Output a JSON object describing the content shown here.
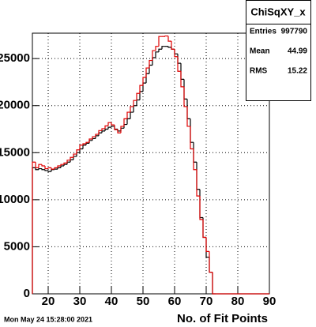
{
  "chart_data": {
    "type": "histogram",
    "stats": {
      "title": "ChiSqXY_x",
      "rows": [
        [
          "Entries",
          "997790"
        ],
        [
          "Mean",
          "44.99"
        ],
        [
          "RMS",
          "15.22"
        ]
      ]
    },
    "x_label": "No. of Fit Points",
    "timestamp": "Mon May 24 15:28:00 2021",
    "bins": [
      15,
      16,
      17,
      18,
      19,
      20,
      21,
      22,
      23,
      24,
      25,
      26,
      27,
      28,
      29,
      30,
      31,
      32,
      33,
      34,
      35,
      36,
      37,
      38,
      39,
      40,
      41,
      42,
      43,
      44,
      45,
      46,
      47,
      48,
      49,
      50,
      51,
      52,
      53,
      54,
      55,
      56,
      57,
      58,
      59,
      60,
      61,
      62,
      63,
      64,
      65,
      66,
      67,
      68,
      69,
      70,
      71,
      72,
      73,
      74,
      75,
      76,
      77,
      78,
      79,
      80,
      81,
      82,
      83,
      84,
      85,
      86,
      87,
      88,
      89,
      90
    ],
    "series": [
      {
        "color": "#000000",
        "values": [
          13400,
          13200,
          13300,
          13200,
          13100,
          13000,
          13200,
          13250,
          13400,
          13600,
          13750,
          14000,
          14250,
          14600,
          15000,
          15400,
          15800,
          16000,
          16300,
          16500,
          16800,
          17100,
          17300,
          17500,
          17700,
          17800,
          17500,
          17300,
          17600,
          18000,
          18600,
          19300,
          20000,
          20600,
          21500,
          22400,
          23400,
          24300,
          25100,
          25700,
          26000,
          26300,
          26300,
          26200,
          26000,
          25500,
          24500,
          22800,
          20700,
          18600,
          16100,
          14000,
          11100,
          8100,
          6000,
          3900,
          2300,
          0,
          0,
          0,
          0,
          0,
          0,
          0,
          0,
          0,
          0,
          0,
          0,
          0,
          0,
          0,
          0,
          0,
          0
        ]
      },
      {
        "color": "#e00000",
        "values": [
          14000,
          13400,
          13750,
          13600,
          13300,
          13400,
          13250,
          13400,
          13600,
          13750,
          13900,
          14200,
          14500,
          14850,
          15300,
          15800,
          15950,
          16100,
          16450,
          16700,
          16950,
          17350,
          17550,
          17850,
          18200,
          17950,
          17450,
          17100,
          17800,
          18600,
          19300,
          19900,
          20550,
          21300,
          22150,
          23000,
          24000,
          24800,
          25850,
          26300,
          27350,
          27350,
          27400,
          26850,
          26000,
          25200,
          23650,
          22000,
          19900,
          17800,
          15400,
          13200,
          10400,
          7900,
          6000,
          4500,
          2300,
          0,
          0,
          0,
          0,
          0,
          0,
          0,
          0,
          0,
          0,
          0,
          0,
          0,
          0,
          0,
          0,
          0,
          0
        ]
      }
    ],
    "xlim": [
      15,
      90
    ],
    "xticks": [
      20,
      30,
      40,
      50,
      60,
      70,
      80,
      90
    ],
    "ylim": [
      0,
      27700
    ],
    "yticks": [
      0,
      5000,
      10000,
      15000,
      20000,
      25000
    ],
    "grid": true
  }
}
